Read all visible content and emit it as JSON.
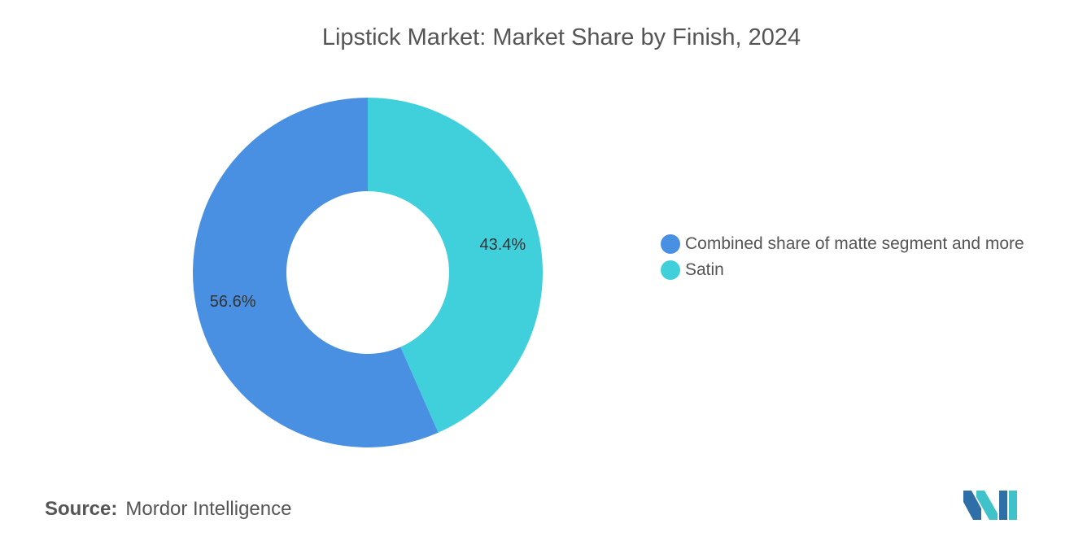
{
  "chart_data": {
    "type": "pie",
    "title": "Lipstick Market: Market Share by Finish, 2024",
    "donut": true,
    "categories": [
      "Combined share of matte segment and more",
      "Satin"
    ],
    "values": [
      56.6,
      43.4
    ],
    "value_labels": [
      "56.6%",
      "43.4%"
    ],
    "colors": [
      "#4a90e2",
      "#40d0dc"
    ],
    "legend_position": "right"
  },
  "source": {
    "label": "Source:",
    "text": "Mordor Intelligence"
  },
  "logo": {
    "icon": "mordor-intelligence-logo",
    "colors": [
      "#2f6fa8",
      "#3fc2c9"
    ]
  }
}
